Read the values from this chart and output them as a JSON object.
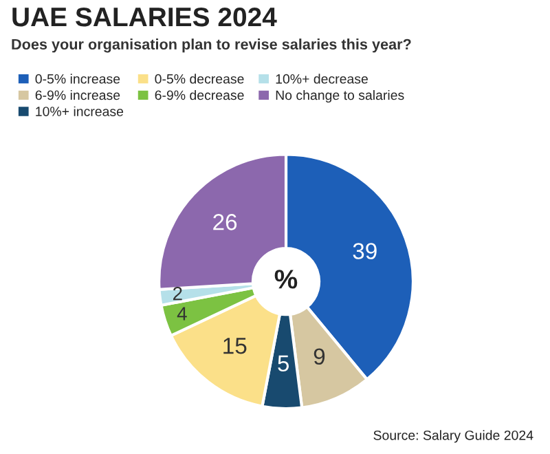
{
  "chart_data": {
    "type": "donut",
    "title": "UAE SALARIES 2024",
    "subtitle": "Does your organisation plan to revise salaries this year?",
    "categories": [
      "0-5% increase",
      "6-9% increase",
      "10%+ increase",
      "0-5% decrease",
      "6-9% decrease",
      "10%+ decrease",
      "No change to salaries"
    ],
    "values": [
      39,
      9,
      5,
      15,
      4,
      2,
      26
    ],
    "colors": [
      "#1d5fb8",
      "#d6c7a1",
      "#184a6f",
      "#fbe089",
      "#7cc242",
      "#b5e0e9",
      "#8c68ad"
    ],
    "data_labels": true,
    "legend": "top",
    "annotations": [
      "%",
      "Source: Salary Guide 2024"
    ]
  }
}
